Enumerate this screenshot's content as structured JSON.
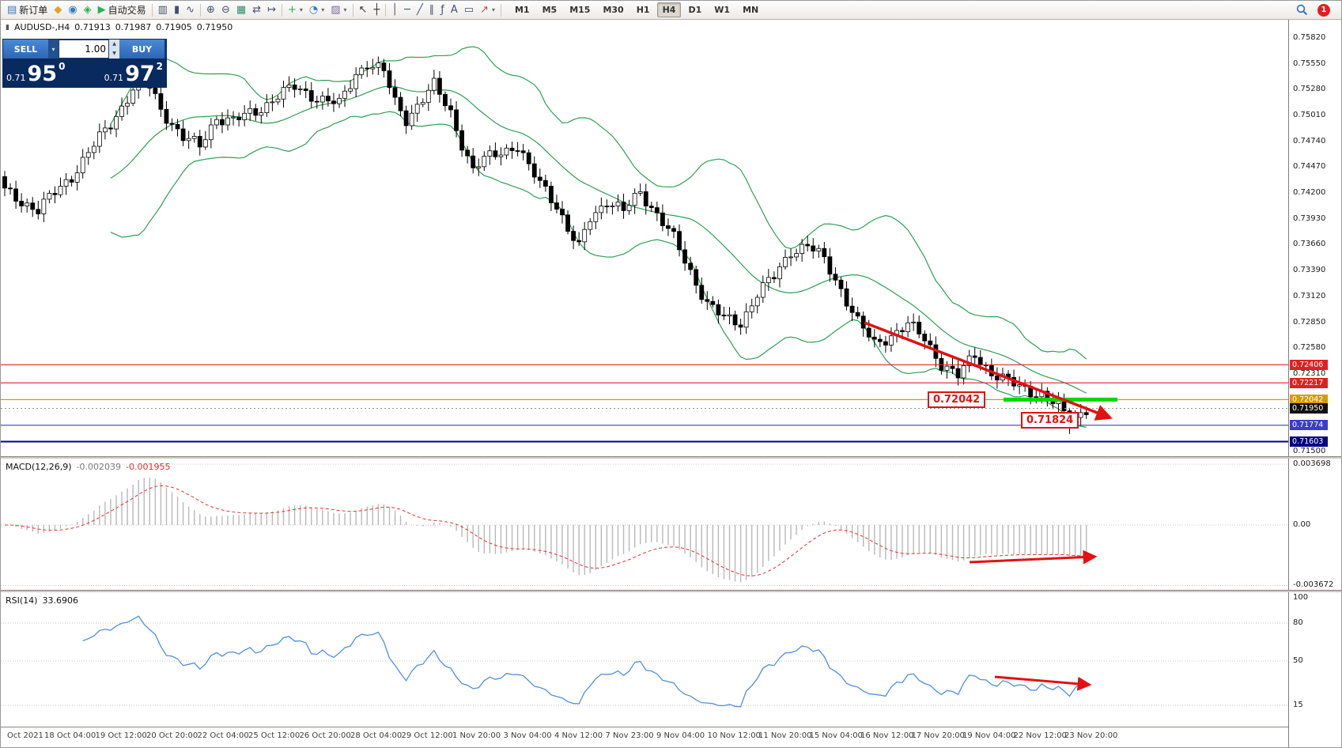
{
  "toolbar": {
    "items": [
      {
        "name": "new-order-button",
        "glyph": "▤",
        "color": "#3a7abf",
        "label": "新订单"
      },
      {
        "name": "charts-icon-button",
        "glyph": "◆",
        "color": "#e0a32e"
      },
      {
        "name": "market-watch-button",
        "glyph": "◉",
        "color": "#3a7abf"
      },
      {
        "name": "navigator-button",
        "glyph": "◈",
        "color": "#2eae4f"
      },
      {
        "name": "auto-trading-button",
        "glyph": "▶",
        "color": "#2eae4f",
        "label": "自动交易"
      },
      {
        "sep": true
      },
      {
        "name": "bar-chart-button",
        "glyph": "▥",
        "color": "#44506a"
      },
      {
        "name": "candle-chart-button",
        "glyph": "▮",
        "color": "#44506a"
      },
      {
        "name": "line-chart-button",
        "glyph": "∿",
        "color": "#44506a"
      },
      {
        "sep": true
      },
      {
        "name": "zoom-in-button",
        "glyph": "⊕",
        "color": "#44506a"
      },
      {
        "name": "zoom-out-button",
        "glyph": "⊖",
        "color": "#44506a"
      },
      {
        "name": "tile-windows-button",
        "glyph": "▦",
        "color": "#2e8e6e"
      },
      {
        "name": "auto-scroll-button",
        "glyph": "⇄",
        "color": "#44506a"
      },
      {
        "name": "chart-shift-button",
        "glyph": "↦",
        "color": "#44506a"
      },
      {
        "sep": true
      },
      {
        "name": "indicators-button",
        "glyph": "+",
        "color": "#2eae4f",
        "dd": true
      },
      {
        "name": "periods-button",
        "glyph": "◔",
        "color": "#3a7abf",
        "dd": true
      },
      {
        "name": "templates-button",
        "glyph": "▨",
        "color": "#7a6a9a",
        "dd": true
      },
      {
        "sep": true
      },
      {
        "name": "cursor-button",
        "glyph": "↖",
        "color": "#333333"
      },
      {
        "name": "crosshair-button",
        "glyph": "┼",
        "color": "#333333"
      },
      {
        "sep": true
      },
      {
        "name": "vertical-line-button",
        "glyph": "│",
        "color": "#44506a"
      },
      {
        "name": "horizontal-line-button",
        "glyph": "─",
        "color": "#44506a"
      },
      {
        "name": "trendline-button",
        "glyph": "╱",
        "color": "#44506a"
      },
      {
        "name": "channel-button",
        "glyph": "∥",
        "color": "#44506a"
      },
      {
        "name": "fibonacci-button",
        "glyph": "ƒ",
        "color": "#44506a"
      },
      {
        "name": "text-button",
        "glyph": "A",
        "color": "#44506a"
      },
      {
        "name": "text-label-button",
        "glyph": "▭",
        "color": "#44506a"
      },
      {
        "name": "arrows-button",
        "glyph": "↗",
        "color": "#b05050",
        "dd": true
      },
      {
        "sep": true
      }
    ],
    "timeframes": [
      "M1",
      "M5",
      "M15",
      "M30",
      "H1",
      "H4",
      "D1",
      "W1",
      "MN"
    ],
    "active_timeframe": "H4",
    "notification_count": "1"
  },
  "chart": {
    "symbol_info": "AUDUSD-,H4",
    "ohlc": {
      "open": "0.71913",
      "high": "0.71987",
      "low": "0.71905",
      "close": "0.71950"
    },
    "axis_ticks": [
      "0.75820",
      "0.75550",
      "0.75280",
      "0.75010",
      "0.74740",
      "0.74470",
      "0.74200",
      "0.73930",
      "0.73660",
      "0.73390",
      "0.73120",
      "0.72850",
      "0.72580",
      "0.72310",
      "0.71500"
    ],
    "levels": [
      {
        "price": "0.72406",
        "color": "#e02020",
        "line": "solid"
      },
      {
        "price": "0.72217",
        "color": "#e02020",
        "line": "solid"
      },
      {
        "price": "0.72042",
        "color": "#d99a00",
        "line": "solid"
      },
      {
        "price": "0.71950",
        "color": "#111111",
        "line": "dotted"
      },
      {
        "price": "0.71774",
        "color": "#3c3ccc",
        "line": "solid"
      },
      {
        "price": "0.71603",
        "color": "#000080",
        "line": "solid-thick"
      }
    ],
    "annotations": [
      {
        "text": "0.72042"
      },
      {
        "text": "0.71824"
      }
    ]
  },
  "oneclick": {
    "sell_label": "SELL",
    "buy_label": "BUY",
    "volume": "1.00",
    "sell_price_small": "0.71",
    "sell_price_big": "95",
    "sell_price_sup": "0",
    "buy_price_small": "0.71",
    "buy_price_big": "97",
    "buy_price_sup": "2"
  },
  "chart_data": {
    "type": "candlestick",
    "symbol": "AUDUSD",
    "timeframe": "H4",
    "bid": "0.71950",
    "ask": "0.71972",
    "candle_count": 195,
    "close_anchors": [
      [
        0,
        0.7422
      ],
      [
        6,
        0.7402
      ],
      [
        12,
        0.7438
      ],
      [
        15,
        0.7462
      ],
      [
        19,
        0.7492
      ],
      [
        22,
        0.752
      ],
      [
        24,
        0.7538
      ],
      [
        26,
        0.753
      ],
      [
        28,
        0.7508
      ],
      [
        32,
        0.7478
      ],
      [
        35,
        0.7468
      ],
      [
        38,
        0.75
      ],
      [
        41,
        0.7495
      ],
      [
        45,
        0.7505
      ],
      [
        49,
        0.7522
      ],
      [
        52,
        0.753
      ],
      [
        56,
        0.752
      ],
      [
        60,
        0.7512
      ],
      [
        63,
        0.7545
      ],
      [
        65,
        0.7556
      ],
      [
        68,
        0.7546
      ],
      [
        70,
        0.7515
      ],
      [
        72,
        0.7498
      ],
      [
        75,
        0.7518
      ],
      [
        77,
        0.7532
      ],
      [
        80,
        0.7505
      ],
      [
        82,
        0.7472
      ],
      [
        84,
        0.7442
      ],
      [
        86,
        0.7455
      ],
      [
        89,
        0.7465
      ],
      [
        92,
        0.7468
      ],
      [
        94,
        0.7445
      ],
      [
        97,
        0.7425
      ],
      [
        99,
        0.7408
      ],
      [
        101,
        0.738
      ],
      [
        103,
        0.7362
      ],
      [
        105,
        0.7395
      ],
      [
        108,
        0.7412
      ],
      [
        111,
        0.74
      ],
      [
        114,
        0.7422
      ],
      [
        117,
        0.7398
      ],
      [
        120,
        0.7372
      ],
      [
        123,
        0.7338
      ],
      [
        126,
        0.7305
      ],
      [
        129,
        0.7288
      ],
      [
        132,
        0.7285
      ],
      [
        135,
        0.7315
      ],
      [
        138,
        0.7332
      ],
      [
        141,
        0.736
      ],
      [
        144,
        0.7365
      ],
      [
        147,
        0.735
      ],
      [
        150,
        0.732
      ],
      [
        153,
        0.7285
      ],
      [
        156,
        0.7262
      ],
      [
        159,
        0.7272
      ],
      [
        162,
        0.7282
      ],
      [
        165,
        0.7268
      ],
      [
        168,
        0.7242
      ],
      [
        171,
        0.7228
      ],
      [
        174,
        0.7252
      ],
      [
        177,
        0.7232
      ],
      [
        180,
        0.7222
      ],
      [
        183,
        0.7216
      ],
      [
        186,
        0.721
      ],
      [
        189,
        0.7196
      ],
      [
        191,
        0.7182
      ],
      [
        194,
        0.7195
      ]
    ],
    "y_range": [
      0.71442,
      0.76009
    ],
    "bollinger": {
      "period": 20,
      "deviation": 2,
      "color": "#2e9e53"
    },
    "support_segment": {
      "price": 0.72042,
      "color": "#00d800"
    },
    "trend_arrows": [
      {
        "pane": "price",
        "direction": "down",
        "color": "#e01212"
      },
      {
        "pane": "macd",
        "direction": "flat-up",
        "color": "#e01212"
      },
      {
        "pane": "rsi",
        "direction": "down",
        "color": "#e01212"
      }
    ],
    "macd": {
      "label": "MACD(12,26,9)",
      "value_main": "-0.002039",
      "value_signal": "-0.001955",
      "fast": 12,
      "slow": 26,
      "signal": 9,
      "axis": [
        "0.003698",
        "0.00",
        "-0.003672"
      ]
    },
    "rsi": {
      "label": "RSI(14)",
      "value": "33.6906",
      "period": 14,
      "axis": [
        "100",
        "80",
        "50",
        "15"
      ],
      "levels": [
        80,
        50,
        15
      ]
    },
    "time_labels": [
      "Oct 2021",
      "18 Oct 04:00",
      "19 Oct 12:00",
      "20 Oct 20:00",
      "22 Oct 04:00",
      "25 Oct 12:00",
      "26 Oct 20:00",
      "28 Oct 04:00",
      "29 Oct 12:00",
      "1 Nov 20:00",
      "3 Nov 04:00",
      "4 Nov 12:00",
      "7 Nov 23:00",
      "9 Nov 04:00",
      "10 Nov 12:00",
      "11 Nov 20:00",
      "15 Nov 04:00",
      "16 Nov 12:00",
      "17 Nov 20:00",
      "19 Nov 04:00",
      "22 Nov 12:00",
      "23 Nov 20:00"
    ]
  }
}
